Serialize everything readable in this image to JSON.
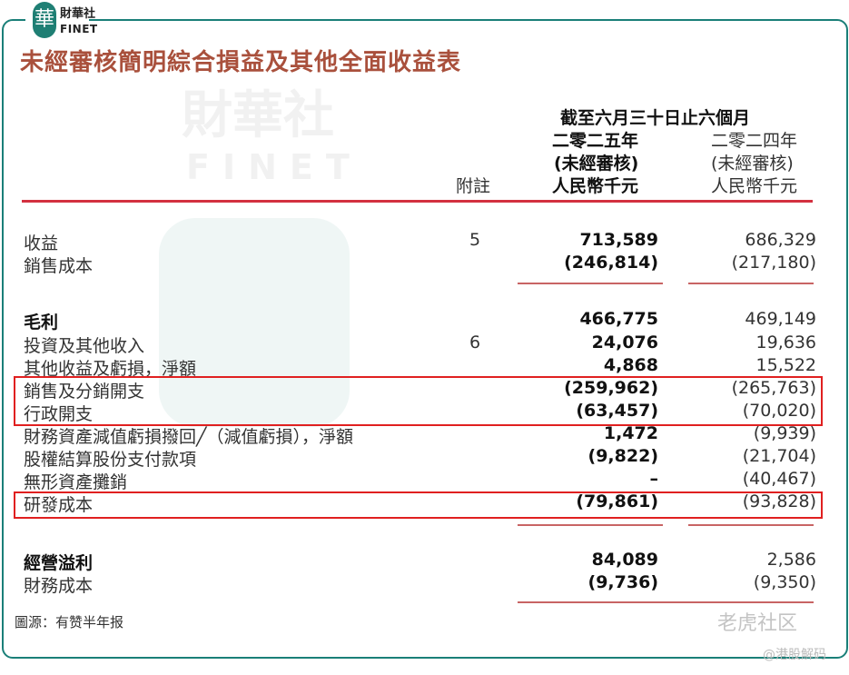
{
  "logo": {
    "mark": "華",
    "name_cn": "財華社",
    "name_en": "FINET"
  },
  "title": "未經審核簡明綜合損益及其他全面收益表",
  "header": {
    "period": "截至六月三十日止六個月",
    "note": "附註",
    "current": {
      "year": "二零二五年",
      "audit": "(未經審核)",
      "unit": "人民幣千元"
    },
    "previous": {
      "year": "二零二四年",
      "audit": "(未經審核)",
      "unit": "人民幣千元"
    }
  },
  "rows": [
    {
      "label": "收益",
      "note": "5",
      "current": "713,589",
      "previous": "686,329"
    },
    {
      "label": "銷售成本",
      "note": "",
      "current": "(246,814)",
      "previous": "(217,180)"
    },
    {
      "label": "毛利",
      "note": "",
      "current": "466,775",
      "previous": "469,149"
    },
    {
      "label": "投資及其他收入",
      "note": "6",
      "current": "24,076",
      "previous": "19,636"
    },
    {
      "label": "其他收益及虧損，淨額",
      "note": "",
      "current": "4,868",
      "previous": "15,522"
    },
    {
      "label": "銷售及分銷開支",
      "note": "",
      "current": "(259,962)",
      "previous": "(265,763)"
    },
    {
      "label": "行政開支",
      "note": "",
      "current": "(63,457)",
      "previous": "(70,020)"
    },
    {
      "label": "財務資產減值虧損撥回╱（減值虧損），淨額",
      "note": "",
      "current": "1,472",
      "previous": "(9,939)"
    },
    {
      "label": "股權結算股份支付款項",
      "note": "",
      "current": "(9,822)",
      "previous": "(21,704)"
    },
    {
      "label": "無形資產攤銷",
      "note": "",
      "current": "–",
      "previous": "(40,467)"
    },
    {
      "label": "研發成本",
      "note": "",
      "current": "(79,861)",
      "previous": "(93,828)"
    },
    {
      "label": "經營溢利",
      "note": "",
      "current": "84,089",
      "previous": "2,586"
    },
    {
      "label": "財務成本",
      "note": "",
      "current": "(9,736)",
      "previous": "(9,350)"
    }
  ],
  "source": "圖源：有赞半年报",
  "watermark": {
    "cn": "財華社",
    "en": "FINET",
    "tiger": "老虎社区",
    "handle": "@港股解码"
  },
  "colors": {
    "frame": "#1a7f78",
    "title": "#a9503c",
    "rule": "#d33140",
    "highlight": "#e02020"
  }
}
